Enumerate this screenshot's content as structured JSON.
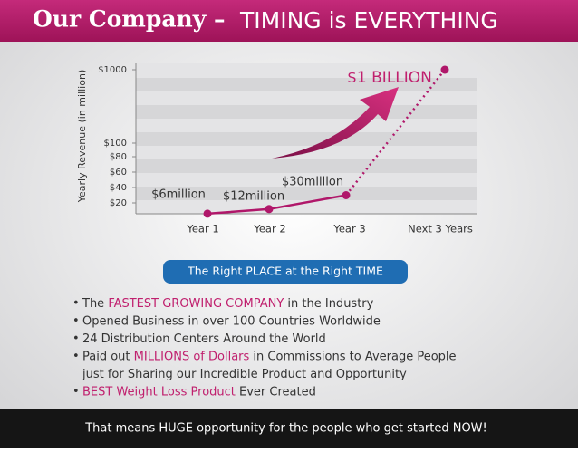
{
  "header": {
    "title_lead": "Our Company –",
    "title_main": "TIMING is EVERYTHING"
  },
  "chart_data": {
    "type": "line",
    "y_label": "Yearly Revenue (in million)",
    "categories": [
      "Year 1",
      "Year 2",
      "Year 3",
      "Next 3 Years"
    ],
    "series": [
      {
        "color": "#b0176a",
        "values": [
          6,
          12,
          30,
          1000
        ],
        "value_labels": [
          "$6million",
          "$12million",
          "$30million",
          "$1 BILLION"
        ]
      }
    ],
    "ylim": [
      0,
      1000
    ],
    "yticks": [
      {
        "value": 20,
        "label": "$20"
      },
      {
        "value": 40,
        "label": "$40"
      },
      {
        "value": 60,
        "label": "$60"
      },
      {
        "value": 80,
        "label": "$80"
      },
      {
        "value": 100,
        "label": "$100"
      },
      {
        "value": 1000,
        "label": "$1000"
      }
    ]
  },
  "banner": "The Right PLACE at the Right TIME",
  "bullets": [
    {
      "segments": [
        {
          "text": "The "
        },
        {
          "text": "FASTEST GROWING COMPANY",
          "color": "#c0206e"
        },
        {
          "text": " in the Industry"
        }
      ]
    },
    {
      "segments": [
        {
          "text": "Opened Business in over 100 Countries Worldwide"
        }
      ]
    },
    {
      "segments": [
        {
          "text": "24 Distribution Centers Around the World"
        }
      ]
    },
    {
      "segments": [
        {
          "text": "Paid out "
        },
        {
          "text": "MILLIONS of Dollars",
          "color": "#c0206e"
        },
        {
          "text": " in Commissions to Average People"
        }
      ]
    },
    {
      "segments": [
        {
          "text": "just for Sharing our Incredible Product and Opportunity"
        }
      ],
      "continuation": true
    },
    {
      "segments": [
        {
          "text": "BEST Weight Loss Product",
          "color": "#c0206e"
        },
        {
          "text": " Ever Created"
        }
      ]
    }
  ],
  "footer": "That means HUGE opportunity for the people who get started NOW!"
}
